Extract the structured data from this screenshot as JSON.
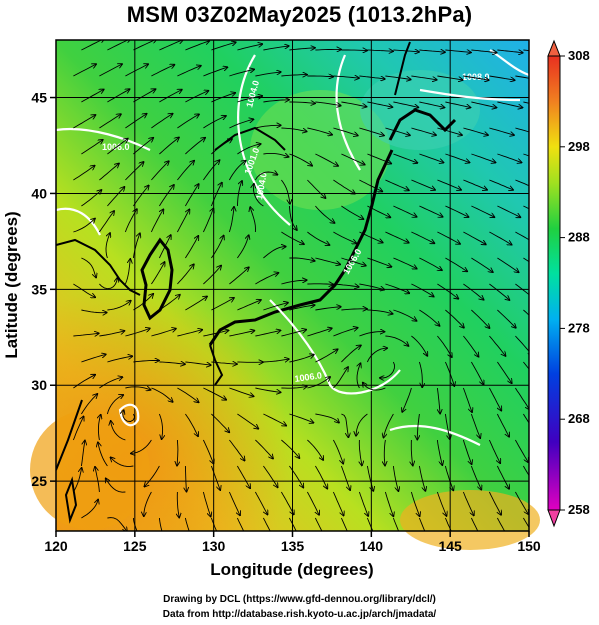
{
  "title": "MSM 03Z02May2025 (1013.2hPa)",
  "x_axis": {
    "label": "Longitude (degrees)",
    "ticks": [
      "120",
      "125",
      "130",
      "135",
      "140",
      "145",
      "150"
    ],
    "min": 120,
    "max": 150
  },
  "y_axis": {
    "label": "Latitude  (degrees)",
    "ticks": [
      "25",
      "30",
      "35",
      "40",
      "45"
    ],
    "min": 22.4,
    "max": 48.0
  },
  "colorbar": {
    "ticks": [
      "258",
      "268",
      "278",
      "288",
      "298",
      "308"
    ],
    "min": 258,
    "max": 308
  },
  "contour_labels": [
    "1004.0",
    "1006.0",
    "1004.0",
    "1006.0",
    "1001.0",
    "1006.0",
    "1008.0"
  ],
  "credits": [
    "Drawing by DCL (https://www.gfd-dennou.org/library/dcl/)",
    "Data from http://database.rish.kyoto-u.ac.jp/arch/jmadata/"
  ],
  "colors": {
    "warm": "#f4a020",
    "mid": "#20d040",
    "cool": "#20c8e0",
    "land": "#000000",
    "isobar": "#ffffff"
  }
}
